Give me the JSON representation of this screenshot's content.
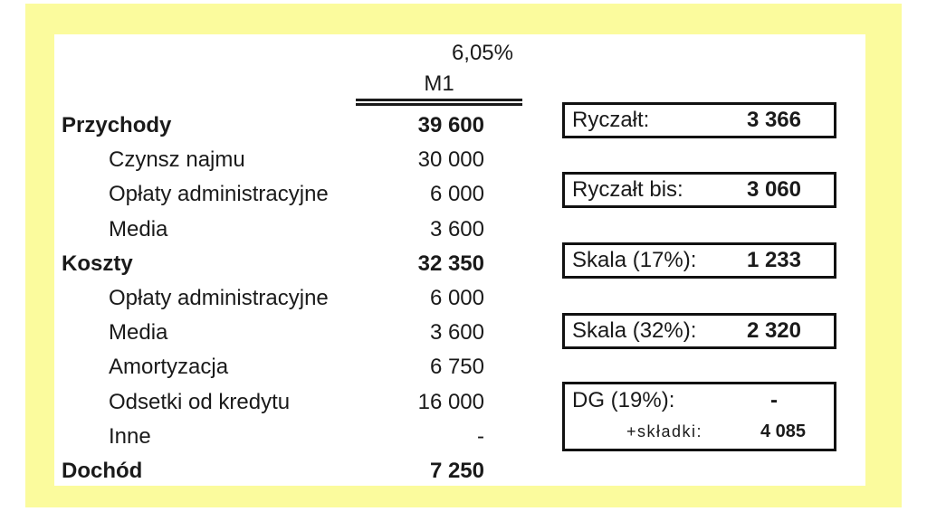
{
  "header": {
    "percent": "6,05%",
    "column": "M1"
  },
  "income_table": {
    "rows": [
      {
        "label": "Przychody",
        "value": "39 600"
      },
      {
        "label": "Czynsz najmu",
        "value": "30 000"
      },
      {
        "label": "Opłaty administracyjne",
        "value": "6 000"
      },
      {
        "label": "Media",
        "value": "3 600"
      },
      {
        "label": "Koszty",
        "value": "32 350"
      },
      {
        "label": "Opłaty administracyjne",
        "value": "6 000"
      },
      {
        "label": "Media",
        "value": "3 600"
      },
      {
        "label": "Amortyzacja",
        "value": "6 750"
      },
      {
        "label": "Odsetki od kredytu",
        "value": "16 000"
      },
      {
        "label": "Inne",
        "value": "-"
      },
      {
        "label": "Dochód",
        "value": "7 250"
      }
    ]
  },
  "tax_boxes": [
    {
      "label": "Ryczałt:",
      "value": "3 366"
    },
    {
      "label": "Ryczałt bis:",
      "value": "3 060"
    },
    {
      "label": "Skala (17%):",
      "value": "1 233"
    },
    {
      "label": "Skala (32%):",
      "value": "2 320"
    },
    {
      "label": "DG (19%):",
      "value": "-",
      "sub_label": "+składki:",
      "sub_value": "4 085"
    }
  ],
  "colors": {
    "frame_yellow": "#fbfb9d",
    "panel_white": "#ffffff",
    "text_black": "#1a1a1a",
    "box_border": "#111111"
  }
}
